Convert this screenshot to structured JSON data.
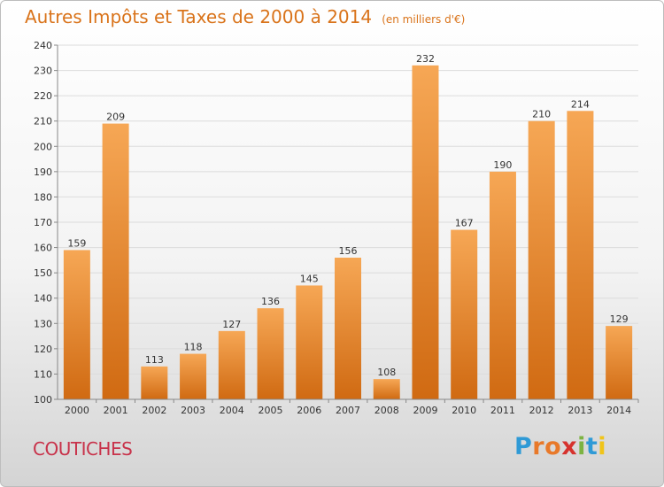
{
  "chart_data": {
    "type": "bar",
    "title": "Autres Impôts et Taxes de 2000 à 2014",
    "unit": "(en milliers d'€)",
    "categories": [
      "2000",
      "2001",
      "2002",
      "2003",
      "2004",
      "2005",
      "2006",
      "2007",
      "2008",
      "2009",
      "2010",
      "2011",
      "2012",
      "2013",
      "2014"
    ],
    "values": [
      159,
      209,
      113,
      118,
      127,
      136,
      145,
      156,
      108,
      232,
      167,
      190,
      210,
      214,
      129
    ],
    "ylim": [
      100,
      240
    ],
    "yticks": [
      100,
      110,
      120,
      130,
      140,
      150,
      160,
      170,
      180,
      190,
      200,
      210,
      220,
      230,
      240
    ],
    "grid": true,
    "colors": {
      "bar_light": "#f6a755",
      "bar_dark": "#d06a12",
      "title": "#d9731a"
    }
  },
  "commune": "COUTICHES",
  "logo": {
    "letters": [
      "P",
      "r",
      "o",
      "x",
      "i",
      "t",
      "i"
    ],
    "colors": [
      "#2f9ad6",
      "#e8792a",
      "#e8792a",
      "#d6322d",
      "#7cb342",
      "#2f9ad6",
      "#f0c419"
    ]
  }
}
